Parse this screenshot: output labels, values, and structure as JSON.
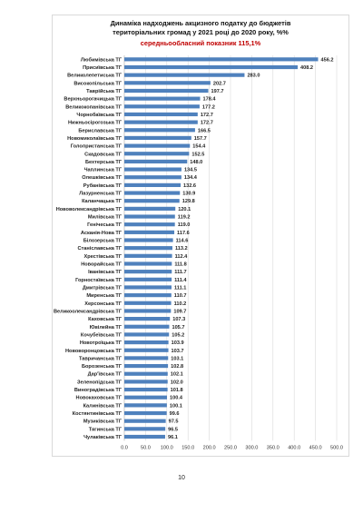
{
  "chart_data": {
    "type": "bar",
    "orientation": "horizontal",
    "title_line1": "Динаміка надходжень акцизного податку до бюджетів",
    "title_line2": "територіальних громад у 2021 році до 2020 року, %%",
    "subtitle": "середньообласний показник 115,1%",
    "xlim": [
      0,
      500
    ],
    "xticks": [
      "0.0",
      "50.0",
      "100.0",
      "150.0",
      "200.0",
      "250.0",
      "300.0",
      "350.0",
      "400.0",
      "450.0",
      "500.0"
    ],
    "grid": true,
    "bar_color": "#4f81bd",
    "highlight_color": "#c00000",
    "categories": [
      "Любимівська ТГ",
      "Присиївська ТГ",
      "Великолепетиська ТГ",
      "Високопільська ТГ",
      "Таврійська ТГ",
      "Верхньорогачицька ТГ",
      "Великокопанівська ТГ",
      "Чорнобаївська ТГ",
      "Нижньосірогозька ТГ",
      "Бериславська ТГ",
      "Новомиколаївська ТГ",
      "Голопристанська ТГ",
      "Скадовська ТГ",
      "Бехтерська ТГ",
      "Чаплинська ТГ",
      "Олешківська ТГ",
      "Рубанівська ТГ",
      "Лазурненська ТГ",
      "Каланчацька ТГ",
      "Нововолександрівська ТГ",
      "Милівська ТГ",
      "Генічеська ТГ",
      "Асканія-Нова ТГ",
      "Білозерська ТГ",
      "Станіславська ТГ",
      "Хрестівська ТГ",
      "Новорайська ТГ",
      "Іванівська ТГ",
      "Горностаївська ТГ",
      "Дмитрівська ТГ",
      "Миренська ТГ",
      "Херсонська ТГ",
      "Великоолександрівська ТГ",
      "Каховська ТГ",
      "Ювілейна ТГ",
      "Кочубеївська ТГ",
      "Новотроїцька ТГ",
      "Нововоронцовська ТГ",
      "Тавричанська ТГ",
      "Борозенська ТГ",
      "Дар'ївська ТГ",
      "Зеленопідська ТГ",
      "Виноградівська ТГ",
      "Новокаховська ТГ",
      "Калинівська ТГ",
      "Костянтинівська ТГ",
      "Музиківська ТГ",
      "Тягинська ТГ",
      "Чулаківська ТГ"
    ],
    "values": [
      456.2,
      408.2,
      283.0,
      202.7,
      197.7,
      178.4,
      177.2,
      172.7,
      172.7,
      166.5,
      157.7,
      154.4,
      152.5,
      148.0,
      134.5,
      134.4,
      132.6,
      130.9,
      129.8,
      120.1,
      119.2,
      119.0,
      117.6,
      114.6,
      113.2,
      112.4,
      111.8,
      111.7,
      111.4,
      111.1,
      110.7,
      110.2,
      109.7,
      107.3,
      105.7,
      105.2,
      103.9,
      103.7,
      103.1,
      102.8,
      102.1,
      102.0,
      101.8,
      100.4,
      100.1,
      99.6,
      97.5,
      96.5,
      96.1
    ],
    "value_labels": [
      "456.2",
      "408.2",
      "283.0",
      "202.7",
      "197.7",
      "178.4",
      "177.2",
      "172.7",
      "172.7",
      "166.5",
      "157.7",
      "154.4",
      "152.5",
      "148.0",
      "134.5",
      "134.4",
      "132.6",
      "130.9",
      "129.8",
      "120.1",
      "119.2",
      "119.0",
      "117.6",
      "114.6",
      "113.2",
      "112.4",
      "111.8",
      "111.7",
      "111.4",
      "111.1",
      "110.7",
      "110.2",
      "109.7",
      "107.3",
      "105.7",
      "105.2",
      "103.9",
      "103.7",
      "103.1",
      "102.8",
      "102.1",
      "102.0",
      "101.8",
      "100.4",
      "100.1",
      "99.6",
      "97.5",
      "96.5",
      "96.1"
    ]
  },
  "page": {
    "number": "10"
  }
}
